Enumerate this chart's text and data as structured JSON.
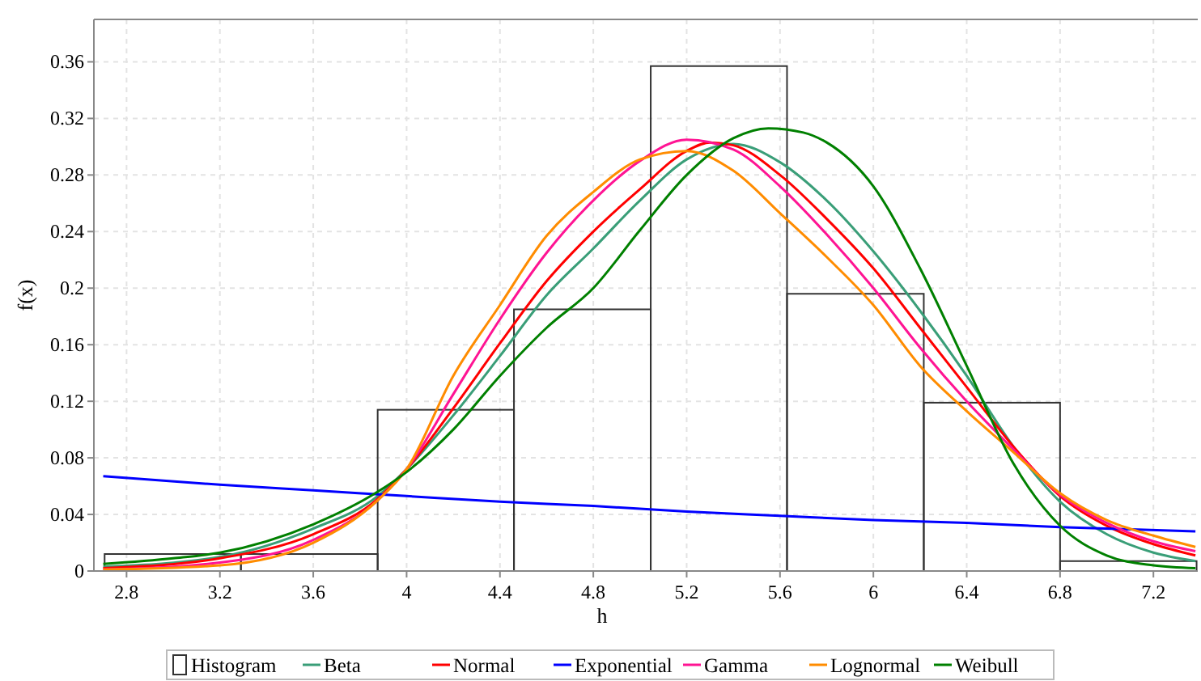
{
  "chart_data": {
    "type": "histogram",
    "xlabel": "h",
    "ylabel": "f(x)",
    "xlim": [
      2.66,
      7.39
    ],
    "ylim": [
      0,
      0.39
    ],
    "xticks": [
      2.8,
      3.2,
      3.6,
      4,
      4.4,
      4.8,
      5.2,
      5.6,
      6,
      6.4,
      6.8,
      7.2
    ],
    "yticks": [
      0,
      0.04,
      0.08,
      0.12,
      0.16,
      0.2,
      0.24,
      0.28,
      0.32,
      0.36
    ],
    "grid": true,
    "legend": "bottom",
    "line_style": "solid",
    "marker": "none",
    "series": [
      {
        "name": "Histogram",
        "color": "#333333",
        "bins": [
          2.706,
          3.29,
          3.876,
          4.46,
          5.046,
          5.63,
          6.216,
          6.8,
          7.385
        ],
        "values": [
          0.012,
          0.012,
          0.114,
          0.185,
          0.357,
          0.196,
          0.119,
          0.007
        ]
      },
      {
        "type": "line",
        "name": "Beta",
        "color": "#3a9e78",
        "x": [
          2.7,
          3.2,
          3.6,
          3.876,
          4,
          4.2,
          4.4,
          4.6,
          4.8,
          5,
          5.2,
          5.4,
          5.6,
          5.8,
          6,
          6.2,
          6.4,
          6.6,
          6.8,
          7,
          7.2,
          7.38
        ],
        "values": [
          0.003,
          0.01,
          0.03,
          0.053,
          0.072,
          0.11,
          0.152,
          0.195,
          0.228,
          0.262,
          0.291,
          0.302,
          0.289,
          0.262,
          0.226,
          0.184,
          0.138,
          0.088,
          0.049,
          0.026,
          0.013,
          0.007
        ]
      },
      {
        "type": "line",
        "name": "Normal",
        "color": "#ff0000",
        "x": [
          2.7,
          3.2,
          3.6,
          3.876,
          4,
          4.2,
          4.4,
          4.6,
          4.8,
          5,
          5.2,
          5.3,
          5.4,
          5.6,
          5.8,
          6,
          6.2,
          6.4,
          6.6,
          6.8,
          7,
          7.2,
          7.38
        ],
        "values": [
          0.002,
          0.009,
          0.026,
          0.051,
          0.072,
          0.115,
          0.161,
          0.205,
          0.24,
          0.27,
          0.297,
          0.303,
          0.301,
          0.28,
          0.249,
          0.214,
          0.172,
          0.13,
          0.088,
          0.053,
          0.032,
          0.019,
          0.011
        ]
      },
      {
        "type": "line",
        "name": "Exponential",
        "color": "#0000ff",
        "x": [
          2.7,
          3.2,
          3.6,
          4,
          4.4,
          4.8,
          5.2,
          5.6,
          6,
          6.4,
          6.8,
          7.38
        ],
        "values": [
          0.067,
          0.061,
          0.057,
          0.053,
          0.049,
          0.046,
          0.042,
          0.039,
          0.036,
          0.034,
          0.031,
          0.028
        ]
      },
      {
        "type": "line",
        "name": "Gamma",
        "color": "#ff1493",
        "x": [
          2.7,
          3.2,
          3.6,
          3.876,
          4,
          4.2,
          4.4,
          4.6,
          4.8,
          5,
          5.2,
          5.4,
          5.6,
          5.8,
          6,
          6.2,
          6.4,
          6.6,
          6.8,
          7,
          7.2,
          7.38
        ],
        "values": [
          0.001,
          0.006,
          0.022,
          0.05,
          0.072,
          0.125,
          0.178,
          0.225,
          0.262,
          0.29,
          0.305,
          0.298,
          0.272,
          0.238,
          0.2,
          0.158,
          0.12,
          0.086,
          0.054,
          0.034,
          0.021,
          0.014
        ]
      },
      {
        "type": "line",
        "name": "Lognormal",
        "color": "#ff8c00",
        "x": [
          2.7,
          3.2,
          3.6,
          3.876,
          4,
          4.2,
          4.4,
          4.6,
          4.8,
          5,
          5.2,
          5.4,
          5.6,
          5.8,
          6,
          6.2,
          6.4,
          6.6,
          6.8,
          7,
          7.2,
          7.38
        ],
        "values": [
          0.001,
          0.004,
          0.02,
          0.05,
          0.072,
          0.138,
          0.188,
          0.237,
          0.268,
          0.291,
          0.297,
          0.283,
          0.253,
          0.222,
          0.188,
          0.145,
          0.113,
          0.084,
          0.055,
          0.036,
          0.025,
          0.017
        ]
      },
      {
        "type": "line",
        "name": "Weibull",
        "color": "#008000",
        "x": [
          2.7,
          3,
          3.2,
          3.6,
          3.876,
          4,
          4.2,
          4.4,
          4.6,
          4.8,
          5,
          5.2,
          5.4,
          5.55,
          5.7,
          5.8,
          6,
          6.2,
          6.4,
          6.6,
          6.8,
          7,
          7.2,
          7.38
        ],
        "values": [
          0.005,
          0.009,
          0.013,
          0.033,
          0.056,
          0.07,
          0.1,
          0.138,
          0.172,
          0.2,
          0.241,
          0.28,
          0.306,
          0.313,
          0.31,
          0.303,
          0.272,
          0.214,
          0.145,
          0.076,
          0.032,
          0.011,
          0.004,
          0.002
        ]
      }
    ]
  }
}
